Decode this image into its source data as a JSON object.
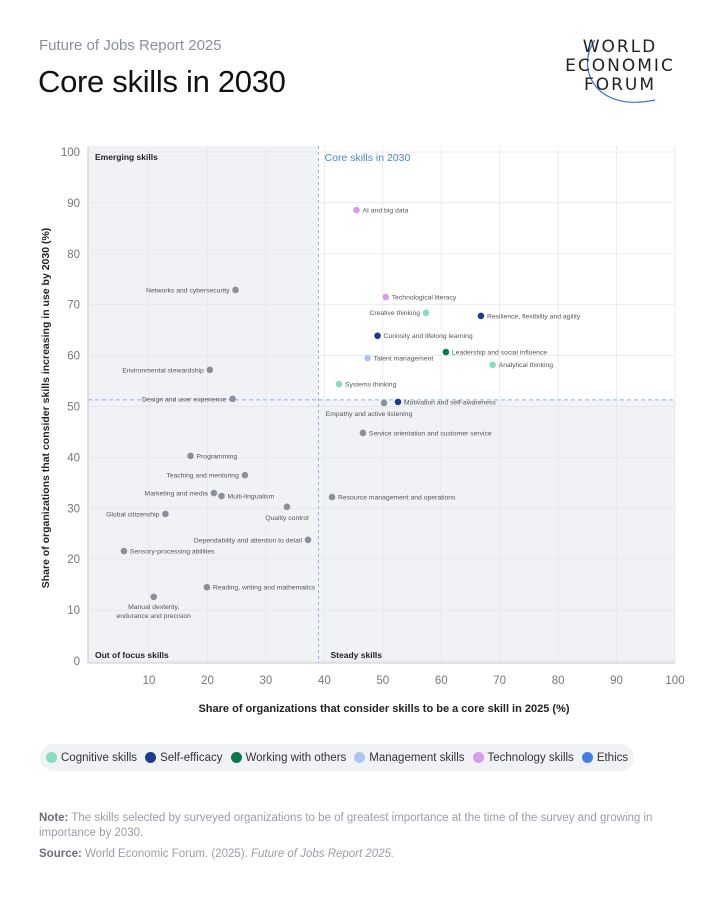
{
  "header": {
    "subtitle": "Future of Jobs Report 2025",
    "title": "Core skills in 2030",
    "logo_text": [
      "WORLD",
      "ECONOMIC",
      "FORUM"
    ]
  },
  "legend": [
    {
      "key": "cognitive",
      "label": "Cognitive skills",
      "color": "#86dfbc"
    },
    {
      "key": "self_efficacy",
      "label": "Self-efficacy",
      "color": "#1e3a8a"
    },
    {
      "key": "working",
      "label": "Working with others",
      "color": "#0a7a4a"
    },
    {
      "key": "management",
      "label": "Management skills",
      "color": "#aac6f0"
    },
    {
      "key": "technology",
      "label": "Technology skills",
      "color": "#d79de8"
    },
    {
      "key": "ethics",
      "label": "Ethics",
      "color": "#3f80e6"
    }
  ],
  "other_color": "#8b909b",
  "chart_data": {
    "type": "scatter",
    "xlabel": "Share of organizations that consider skills to be a core skill in 2025 (%)",
    "ylabel": "Share of organizations that consider skills increasing in use by 2030 (%)",
    "xlim": [
      0,
      100
    ],
    "ylim": [
      0,
      100
    ],
    "xticks": [
      10,
      20,
      30,
      40,
      50,
      60,
      70,
      80,
      90,
      100
    ],
    "yticks": [
      0,
      10,
      20,
      30,
      40,
      50,
      60,
      70,
      80,
      90,
      100
    ],
    "grid": true,
    "thresholds": {
      "x": 39,
      "y": 51.3
    },
    "quadrants": {
      "top_left": "Emerging skills",
      "top_right": "Core skills in 2030",
      "bottom_left": "Out of focus skills",
      "bottom_right": "Steady skills"
    },
    "points": [
      {
        "label": "AI and big data",
        "x": 45.5,
        "y": 88.6,
        "category": "technology"
      },
      {
        "label": "Networks and cybersecurity",
        "x": 24.8,
        "y": 72.9,
        "category": "other"
      },
      {
        "label": "Technological literacy",
        "x": 50.5,
        "y": 71.5,
        "category": "technology"
      },
      {
        "label": "Creative thinking",
        "x": 57.4,
        "y": 68.4,
        "category": "cognitive"
      },
      {
        "label": "Resilience, flexibility and agility",
        "x": 66.8,
        "y": 67.8,
        "category": "self_efficacy"
      },
      {
        "label": "Curiosity and lifelong learning",
        "x": 49.1,
        "y": 63.9,
        "category": "self_efficacy"
      },
      {
        "label": "Leadership and social influence",
        "x": 60.8,
        "y": 60.7,
        "category": "working"
      },
      {
        "label": "Talent management",
        "x": 47.4,
        "y": 59.5,
        "category": "management"
      },
      {
        "label": "Analytical thinking",
        "x": 68.8,
        "y": 58.2,
        "category": "cognitive"
      },
      {
        "label": "Environmental stewardship",
        "x": 20.4,
        "y": 57.2,
        "category": "other"
      },
      {
        "label": "Systems thinking",
        "x": 42.5,
        "y": 54.4,
        "category": "cognitive"
      },
      {
        "label": "Design and user experience",
        "x": 24.3,
        "y": 51.5,
        "category": "other"
      },
      {
        "label": "Empathy and active listening",
        "x": 50.2,
        "y": 50.7,
        "category": "other"
      },
      {
        "label": "Motivation and self-awareness",
        "x": 52.6,
        "y": 50.9,
        "category": "self_efficacy"
      },
      {
        "label": "Service orientation and customer service",
        "x": 46.6,
        "y": 44.8,
        "category": "other"
      },
      {
        "label": "Programming",
        "x": 17.1,
        "y": 40.3,
        "category": "other"
      },
      {
        "label": "Teaching and mentoring",
        "x": 26.4,
        "y": 36.5,
        "category": "other"
      },
      {
        "label": "Marketing and media",
        "x": 21.1,
        "y": 33.0,
        "category": "other"
      },
      {
        "label": "Multi-lingualism",
        "x": 22.4,
        "y": 32.4,
        "category": "other"
      },
      {
        "label": "Resource management and operations",
        "x": 41.3,
        "y": 32.2,
        "category": "other"
      },
      {
        "label": "Quality control",
        "x": 33.6,
        "y": 30.3,
        "category": "other"
      },
      {
        "label": "Global citizenship",
        "x": 12.8,
        "y": 28.9,
        "category": "other"
      },
      {
        "label": "Dependability and attention to detail",
        "x": 37.2,
        "y": 23.8,
        "category": "other"
      },
      {
        "label": "Sensory-processing abilities",
        "x": 5.7,
        "y": 21.6,
        "category": "other"
      },
      {
        "label": "Reading, writing and mathematics",
        "x": 19.9,
        "y": 14.5,
        "category": "other"
      },
      {
        "label": "Manual dexterity, endurance and precision",
        "x": 10.8,
        "y": 12.6,
        "category": "other"
      }
    ]
  },
  "footer": {
    "note_label": "Note:",
    "note_text": " The skills selected by surveyed organizations to be of greatest importance at the time of the survey and growing in importance by 2030.",
    "source_label": "Source:",
    "source_text": " World Economic Forum. (2025). ",
    "source_title": "Future of Jobs Report 2025."
  }
}
